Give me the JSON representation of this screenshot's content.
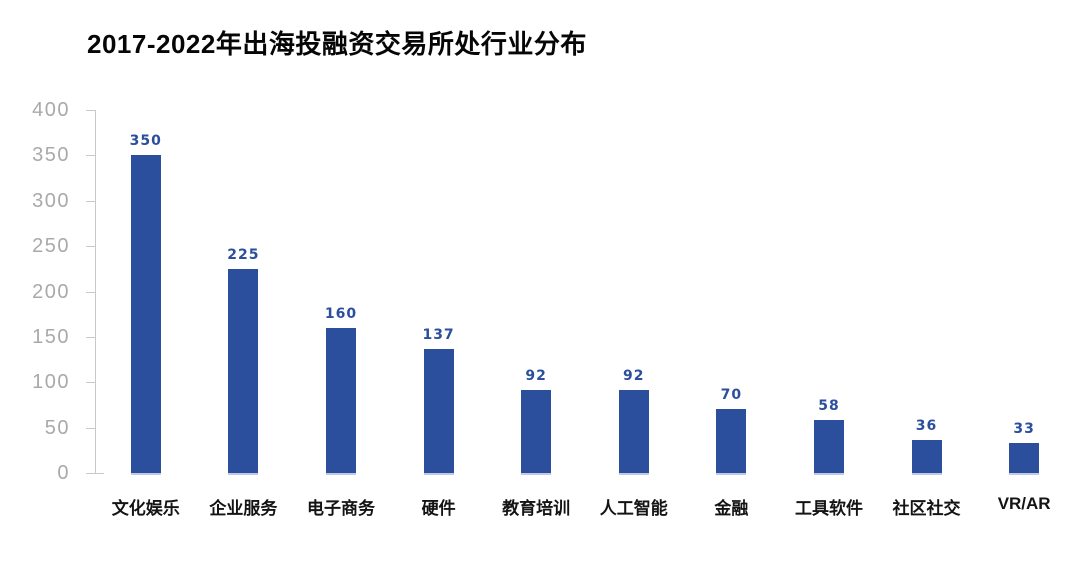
{
  "chart_data": {
    "type": "bar",
    "title": "2017-2022年出海投融资交易所处行业分布",
    "categories": [
      "文化娱乐",
      "企业服务",
      "电子商务",
      "硬件",
      "教育培训",
      "人工智能",
      "金融",
      "工具软件",
      "社区社交",
      "VR/AR"
    ],
    "values": [
      350,
      225,
      160,
      137,
      92,
      92,
      70,
      58,
      36,
      33
    ],
    "xlabel": "",
    "ylabel": "",
    "ylim": [
      0,
      400
    ],
    "yticks": [
      0,
      50,
      100,
      150,
      200,
      250,
      300,
      350,
      400
    ],
    "grid": false,
    "legend_position": "none",
    "value_labels_shown": true,
    "colors": {
      "bar": "#2b4f9d",
      "value_label": "#2b4f9d",
      "axis_line": "#c9c9c9",
      "y_tick_label": "#a9a9a9",
      "category_label": "#141414",
      "title": "#060606",
      "background": "#ffffff"
    }
  }
}
